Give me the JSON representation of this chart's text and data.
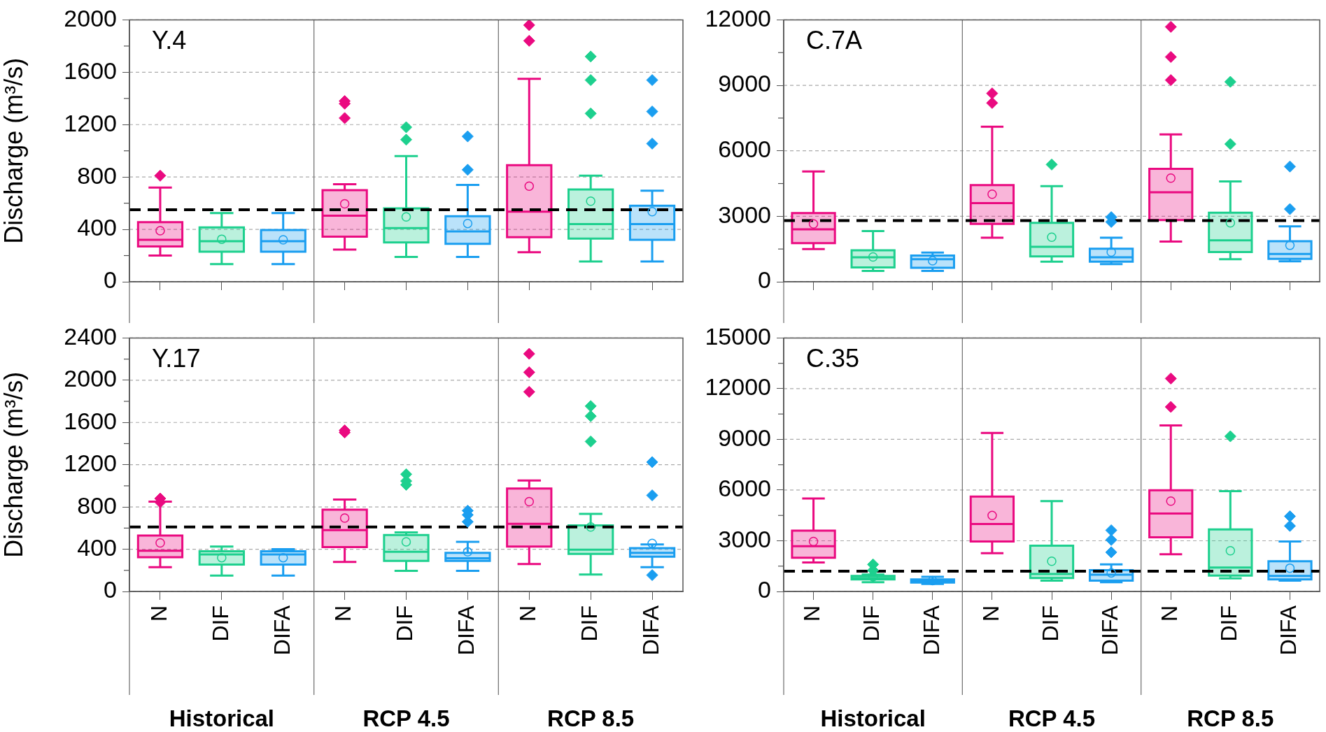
{
  "chart_data": [
    {
      "type": "box",
      "title": "Y.4",
      "ylabel": "Discharge (m³/s)",
      "categories": [
        null,
        null,
        null,
        null,
        null,
        null,
        null,
        null,
        null
      ],
      "colors": [
        "#ea0a80",
        "#1dd08e",
        "#1a9ef0",
        "#ea0a80",
        "#1dd08e",
        "#1a9ef0",
        "#ea0a80",
        "#1dd08e",
        "#1a9ef0"
      ],
      "boxes": [
        {
          "low": 200,
          "q1": 270,
          "median": 320,
          "q3": 455,
          "high": 720,
          "mean": 390,
          "outliers": [
            810
          ]
        },
        {
          "low": 135,
          "q1": 230,
          "median": 310,
          "q3": 415,
          "high": 525,
          "mean": 325
        },
        {
          "low": 135,
          "q1": 230,
          "median": 310,
          "q3": 395,
          "high": 525,
          "mean": 320
        },
        {
          "low": 245,
          "q1": 345,
          "median": 505,
          "q3": 700,
          "high": 745,
          "mean": 595,
          "outliers": [
            1380,
            1360,
            1250
          ]
        },
        {
          "low": 190,
          "q1": 300,
          "median": 410,
          "q3": 560,
          "high": 960,
          "mean": 495,
          "outliers": [
            1180,
            1085
          ]
        },
        {
          "low": 190,
          "q1": 290,
          "median": 385,
          "q3": 500,
          "high": 740,
          "mean": 445,
          "outliers": [
            1110,
            855
          ]
        },
        {
          "low": 225,
          "q1": 340,
          "median": 535,
          "q3": 890,
          "high": 1550,
          "mean": 730,
          "outliers": [
            1960,
            1840
          ]
        },
        {
          "low": 155,
          "q1": 330,
          "median": 440,
          "q3": 705,
          "high": 810,
          "mean": 615,
          "outliers": [
            1720,
            1540,
            1285
          ]
        },
        {
          "low": 155,
          "q1": 320,
          "median": 440,
          "q3": 580,
          "high": 695,
          "mean": 535,
          "outliers": [
            1540,
            1300,
            1055
          ]
        }
      ],
      "ylim": [
        0,
        2000
      ],
      "yticks": [
        0,
        {
          "value": 200,
          "label": null
        },
        400,
        {
          "value": 600,
          "label": null
        },
        800,
        {
          "value": 1000,
          "label": null
        },
        1200,
        {
          "value": 1400,
          "label": null
        },
        1600,
        {
          "value": 1800,
          "label": null
        },
        2000
      ],
      "grid": "y",
      "marker": "diamond",
      "tick_labels": "y",
      "ref_lines": [
        {
          "axis": "y",
          "value": 550,
          "color": "#000000",
          "line_style": "dashed"
        }
      ]
    },
    {
      "type": "box",
      "title": "C.7A",
      "categories": [
        null,
        null,
        null,
        null,
        null,
        null,
        null,
        null,
        null
      ],
      "colors": [
        "#ea0a80",
        "#1dd08e",
        "#1a9ef0",
        "#ea0a80",
        "#1dd08e",
        "#1a9ef0",
        "#ea0a80",
        "#1dd08e",
        "#1a9ef0"
      ],
      "boxes": [
        {
          "low": 1500,
          "q1": 1770,
          "median": 2400,
          "q3": 3150,
          "high": 5050,
          "mean": 2650
        },
        {
          "low": 500,
          "q1": 660,
          "median": 1120,
          "q3": 1440,
          "high": 2320,
          "mean": 1140
        },
        {
          "low": 500,
          "q1": 640,
          "median": 1030,
          "q3": 1200,
          "high": 1340,
          "mean": 960
        },
        {
          "low": 2020,
          "q1": 2650,
          "median": 3600,
          "q3": 4430,
          "high": 7100,
          "mean": 4010,
          "outliers": [
            8630,
            8190
          ]
        },
        {
          "low": 920,
          "q1": 1160,
          "median": 1600,
          "q3": 2700,
          "high": 4380,
          "mean": 2040,
          "outliers": [
            5370
          ]
        },
        {
          "low": 810,
          "q1": 920,
          "median": 1120,
          "q3": 1510,
          "high": 2020,
          "mean": 1360,
          "outliers": [
            2960,
            2740
          ]
        },
        {
          "low": 1840,
          "q1": 2830,
          "median": 4100,
          "q3": 5170,
          "high": 6750,
          "mean": 4750,
          "outliers": [
            11680,
            10300,
            9240
          ]
        },
        {
          "low": 1030,
          "q1": 1360,
          "median": 1900,
          "q3": 3160,
          "high": 4600,
          "mean": 2700,
          "outliers": [
            9160,
            6310
          ]
        },
        {
          "low": 940,
          "q1": 1050,
          "median": 1270,
          "q3": 1860,
          "high": 2540,
          "mean": 1670,
          "outliers": [
            5280,
            3330
          ]
        }
      ],
      "ylim": [
        0,
        12000
      ],
      "yticks": [
        0,
        {
          "value": 1500,
          "label": null
        },
        3000,
        {
          "value": 4500,
          "label": null
        },
        6000,
        {
          "value": 7500,
          "label": null
        },
        9000,
        {
          "value": 10500,
          "label": null
        },
        12000
      ],
      "grid": "y",
      "marker": "diamond",
      "tick_labels": "y",
      "ref_lines": [
        {
          "axis": "y",
          "value": 2800,
          "color": "#000000",
          "line_style": "dashed"
        }
      ]
    },
    {
      "type": "box",
      "title": "Y.17",
      "ylabel": "Discharge (m³/s)",
      "categories": [
        "N",
        "DIF",
        "DIFA",
        "N",
        "DIF",
        "DIFA",
        "N",
        "DIF",
        "DIFA"
      ],
      "colors": [
        "#ea0a80",
        "#1dd08e",
        "#1a9ef0",
        "#ea0a80",
        "#1dd08e",
        "#1a9ef0",
        "#ea0a80",
        "#1dd08e",
        "#1a9ef0"
      ],
      "boxes": [
        {
          "low": 230,
          "q1": 325,
          "median": 385,
          "q3": 530,
          "high": 850,
          "mean": 460,
          "outliers": [
            880,
            845
          ]
        },
        {
          "low": 150,
          "q1": 255,
          "median": 350,
          "q3": 380,
          "high": 425,
          "mean": 320
        },
        {
          "low": 150,
          "q1": 255,
          "median": 350,
          "q3": 380,
          "high": 400,
          "mean": 320
        },
        {
          "low": 280,
          "q1": 420,
          "median": 580,
          "q3": 775,
          "high": 870,
          "mean": 695,
          "outliers": [
            1525,
            1505
          ]
        },
        {
          "low": 195,
          "q1": 290,
          "median": 375,
          "q3": 535,
          "high": 560,
          "mean": 470,
          "outliers": [
            1110,
            1045,
            1010
          ]
        },
        {
          "low": 195,
          "q1": 290,
          "median": 315,
          "q3": 365,
          "high": 470,
          "mean": 375,
          "outliers": [
            765,
            725,
            660
          ]
        },
        {
          "low": 260,
          "q1": 425,
          "median": 640,
          "q3": 975,
          "high": 1050,
          "mean": 850,
          "outliers": [
            2250,
            2075,
            1890
          ]
        },
        {
          "low": 160,
          "q1": 355,
          "median": 395,
          "q3": 625,
          "high": 735,
          "mean": 610,
          "outliers": [
            1755,
            1660,
            1420
          ]
        },
        {
          "low": 230,
          "q1": 330,
          "median": 365,
          "q3": 410,
          "high": 445,
          "mean": 455,
          "outliers": [
            1225,
            910,
            155
          ]
        }
      ],
      "ylim": [
        0,
        2400
      ],
      "yticks": [
        0,
        {
          "value": 200,
          "label": null
        },
        400,
        {
          "value": 600,
          "label": null
        },
        800,
        {
          "value": 1000,
          "label": null
        },
        1200,
        {
          "value": 1400,
          "label": null
        },
        1600,
        {
          "value": 1800,
          "label": null
        },
        2000,
        {
          "value": 2200,
          "label": null
        },
        2400
      ],
      "grid": "y",
      "marker": "diamond",
      "ref_lines": [
        {
          "axis": "y",
          "value": 610,
          "color": "#000000",
          "line_style": "dashed"
        }
      ],
      "annotations": [
        "Historical",
        "RCP 4.5",
        "RCP 8.5"
      ]
    },
    {
      "type": "box",
      "title": "C.35",
      "categories": [
        "N",
        "DIF",
        "DIFA",
        "N",
        "DIF",
        "DIFA",
        "N",
        "DIF",
        "DIFA"
      ],
      "colors": [
        "#ea0a80",
        "#1dd08e",
        "#1a9ef0",
        "#ea0a80",
        "#1dd08e",
        "#1a9ef0",
        "#ea0a80",
        "#1dd08e",
        "#1a9ef0"
      ],
      "boxes": [
        {
          "low": 1720,
          "q1": 2000,
          "median": 2680,
          "q3": 3600,
          "high": 5500,
          "mean": 2960
        },
        {
          "low": 550,
          "q1": 710,
          "median": 800,
          "q3": 920,
          "high": 1000,
          "mean": 870,
          "outliers": [
            1600,
            1250
          ]
        },
        {
          "low": 440,
          "q1": 530,
          "median": 640,
          "q3": 710,
          "high": 870,
          "mean": 640
        },
        {
          "low": 2270,
          "q1": 2960,
          "median": 3990,
          "q3": 5620,
          "high": 9380,
          "mean": 4500
        },
        {
          "low": 640,
          "q1": 800,
          "median": 1030,
          "q3": 2710,
          "high": 5350,
          "mean": 1790
        },
        {
          "low": 550,
          "q1": 640,
          "median": 990,
          "q3": 1260,
          "high": 1600,
          "mean": 1100,
          "outliers": [
            3620,
            3050,
            2320
          ]
        },
        {
          "low": 2200,
          "q1": 3210,
          "median": 4610,
          "q3": 5990,
          "high": 9820,
          "mean": 5350,
          "outliers": [
            12600,
            10920
          ]
        },
        {
          "low": 780,
          "q1": 940,
          "median": 1420,
          "q3": 3670,
          "high": 5940,
          "mean": 2410,
          "outliers": [
            9180
          ]
        },
        {
          "low": 640,
          "q1": 710,
          "median": 920,
          "q3": 1790,
          "high": 2960,
          "mean": 1380,
          "outliers": [
            4450,
            3880
          ]
        }
      ],
      "ylim": [
        0,
        15000
      ],
      "yticks": [
        0,
        {
          "value": 1500,
          "label": null
        },
        3000,
        {
          "value": 4500,
          "label": null
        },
        6000,
        {
          "value": 7500,
          "label": null
        },
        9000,
        {
          "value": 10500,
          "label": null
        },
        12000,
        {
          "value": 13500,
          "label": null
        },
        15000
      ],
      "grid": "y",
      "marker": "diamond",
      "ref_lines": [
        {
          "axis": "y",
          "value": 1200,
          "color": "#000000",
          "line_style": "dashed"
        }
      ],
      "annotations": [
        "Historical",
        "RCP 4.5",
        "RCP 8.5"
      ]
    }
  ]
}
